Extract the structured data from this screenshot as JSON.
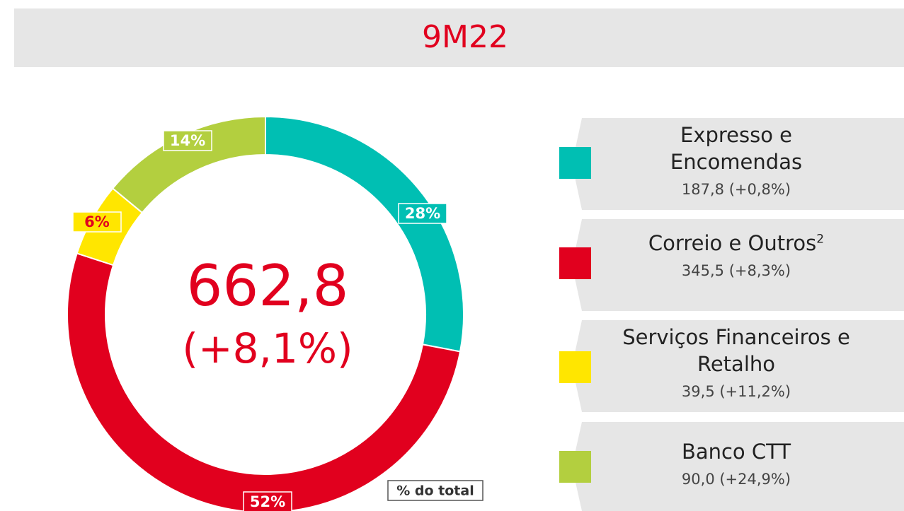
{
  "chart_data": {
    "type": "pie",
    "title": "9M22",
    "center_value": "662,8",
    "center_change": "(+8,1%)",
    "note": "% do total",
    "categories": [
      "Expresso e Encomendas",
      "Correio e Outros",
      "Serviços Financeiros e Retalho",
      "Banco CTT"
    ],
    "category_notes": [
      null,
      "2",
      null,
      null
    ],
    "values": [
      28,
      52,
      6,
      14
    ],
    "value_labels": [
      "28%",
      "52%",
      "6%",
      "14%"
    ],
    "details": [
      "187,8 (+0,8%)",
      "345,5 (+8,3%)",
      "39,5 (+11,2%)",
      "90,0 (+24,9%)"
    ],
    "colors": [
      "#00bfb3",
      "#e1001e",
      "#ffe600",
      "#b3cf3f"
    ]
  }
}
